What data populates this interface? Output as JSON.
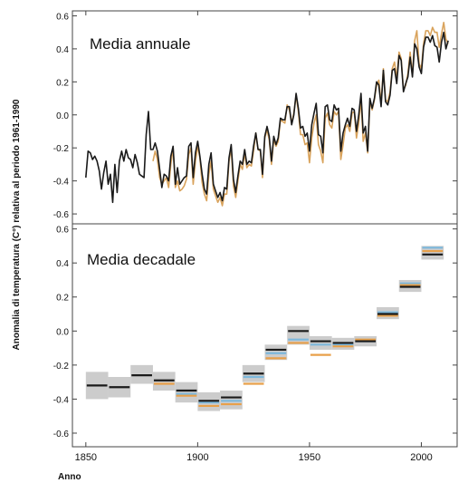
{
  "chart_data": [
    {
      "type": "line",
      "title": "Media annuale",
      "ylabel": "Anomalia di temperatura (C°) relativa al periodo 1961-1990",
      "xlim": [
        1844,
        2016
      ],
      "ylim": [
        -0.66,
        0.63
      ],
      "yticks": [
        -0.6,
        -0.4,
        -0.2,
        0.0,
        0.2,
        0.4,
        0.6
      ],
      "ytick_labels": [
        "-0.6",
        "-0.4",
        "-0.2",
        "0.0",
        "0.2",
        "0.4",
        "0.6"
      ],
      "grid": false,
      "series": [
        {
          "color": "#1a1a1a",
          "x": [
            1850,
            1851,
            1852,
            1853,
            1854,
            1855,
            1856,
            1857,
            1858,
            1859,
            1860,
            1861,
            1862,
            1863,
            1864,
            1865,
            1866,
            1867,
            1868,
            1869,
            1870,
            1871,
            1872,
            1873,
            1874,
            1875,
            1876,
            1877,
            1878,
            1879,
            1880,
            1881,
            1882,
            1883,
            1884,
            1885,
            1886,
            1887,
            1888,
            1889,
            1890,
            1891,
            1892,
            1893,
            1894,
            1895,
            1896,
            1897,
            1898,
            1899,
            1900,
            1901,
            1902,
            1903,
            1904,
            1905,
            1906,
            1907,
            1908,
            1909,
            1910,
            1911,
            1912,
            1913,
            1914,
            1915,
            1916,
            1917,
            1918,
            1919,
            1920,
            1921,
            1922,
            1923,
            1924,
            1925,
            1926,
            1927,
            1928,
            1929,
            1930,
            1931,
            1932,
            1933,
            1934,
            1935,
            1936,
            1937,
            1938,
            1939,
            1940,
            1941,
            1942,
            1943,
            1944,
            1945,
            1946,
            1947,
            1948,
            1949,
            1950,
            1951,
            1952,
            1953,
            1954,
            1955,
            1956,
            1957,
            1958,
            1959,
            1960,
            1961,
            1962,
            1963,
            1964,
            1965,
            1966,
            1967,
            1968,
            1969,
            1970,
            1971,
            1972,
            1973,
            1974,
            1975,
            1976,
            1977,
            1978,
            1979,
            1980,
            1981,
            1982,
            1983,
            1984,
            1985,
            1986,
            1987,
            1988,
            1989,
            1990,
            1991,
            1992,
            1993,
            1994,
            1995,
            1996,
            1997,
            1998,
            1999,
            2000,
            2001,
            2002,
            2003,
            2004,
            2005,
            2006,
            2007,
            2008,
            2009,
            2010,
            2011,
            2012
          ],
          "y": [
            -0.38,
            -0.22,
            -0.23,
            -0.27,
            -0.25,
            -0.28,
            -0.34,
            -0.45,
            -0.35,
            -0.28,
            -0.42,
            -0.36,
            -0.53,
            -0.3,
            -0.47,
            -0.28,
            -0.22,
            -0.28,
            -0.21,
            -0.26,
            -0.27,
            -0.32,
            -0.24,
            -0.29,
            -0.36,
            -0.37,
            -0.38,
            -0.12,
            0.02,
            -0.21,
            -0.21,
            -0.17,
            -0.22,
            -0.33,
            -0.44,
            -0.36,
            -0.37,
            -0.4,
            -0.25,
            -0.19,
            -0.42,
            -0.32,
            -0.42,
            -0.4,
            -0.38,
            -0.37,
            -0.19,
            -0.17,
            -0.38,
            -0.23,
            -0.16,
            -0.25,
            -0.36,
            -0.45,
            -0.48,
            -0.3,
            -0.23,
            -0.42,
            -0.46,
            -0.5,
            -0.47,
            -0.52,
            -0.44,
            -0.45,
            -0.26,
            -0.18,
            -0.39,
            -0.47,
            -0.37,
            -0.28,
            -0.3,
            -0.21,
            -0.3,
            -0.28,
            -0.29,
            -0.19,
            -0.11,
            -0.21,
            -0.21,
            -0.36,
            -0.13,
            -0.07,
            -0.13,
            -0.28,
            -0.13,
            -0.18,
            -0.14,
            -0.02,
            -0.03,
            -0.03,
            0.05,
            0.05,
            -0.06,
            0.0,
            0.13,
            0.04,
            -0.08,
            -0.07,
            -0.13,
            -0.11,
            -0.22,
            -0.06,
            0.01,
            0.07,
            -0.12,
            -0.13,
            -0.23,
            0.05,
            0.06,
            -0.03,
            -0.04,
            0.06,
            0.03,
            0.04,
            -0.22,
            -0.11,
            -0.06,
            -0.02,
            -0.07,
            0.04,
            0.03,
            -0.1,
            0.0,
            0.13,
            -0.11,
            -0.07,
            -0.22,
            0.1,
            0.04,
            0.1,
            0.2,
            0.18,
            0.05,
            0.27,
            0.08,
            0.06,
            0.12,
            0.27,
            0.28,
            0.19,
            0.36,
            0.33,
            0.14,
            0.19,
            0.23,
            0.35,
            0.23,
            0.43,
            0.4,
            0.29,
            0.25,
            0.41,
            0.47,
            0.47,
            0.44,
            0.48,
            0.42,
            0.41,
            0.32,
            0.44,
            0.5,
            0.4,
            0.45
          ]
        },
        {
          "color": "#d9a35c",
          "x": [
            1880,
            1881,
            1882,
            1883,
            1884,
            1885,
            1886,
            1887,
            1888,
            1889,
            1890,
            1891,
            1892,
            1893,
            1894,
            1895,
            1896,
            1897,
            1898,
            1899,
            1900,
            1901,
            1902,
            1903,
            1904,
            1905,
            1906,
            1907,
            1908,
            1909,
            1910,
            1911,
            1912,
            1913,
            1914,
            1915,
            1916,
            1917,
            1918,
            1919,
            1920,
            1921,
            1922,
            1923,
            1924,
            1925,
            1926,
            1927,
            1928,
            1929,
            1930,
            1931,
            1932,
            1933,
            1934,
            1935,
            1936,
            1937,
            1938,
            1939,
            1940,
            1941,
            1942,
            1943,
            1944,
            1945,
            1946,
            1947,
            1948,
            1949,
            1950,
            1951,
            1952,
            1953,
            1954,
            1955,
            1956,
            1957,
            1958,
            1959,
            1960,
            1961,
            1962,
            1963,
            1964,
            1965,
            1966,
            1967,
            1968,
            1969,
            1970,
            1971,
            1972,
            1973,
            1974,
            1975,
            1976,
            1977,
            1978,
            1979,
            1980,
            1981,
            1982,
            1983,
            1984,
            1985,
            1986,
            1987,
            1988,
            1989,
            1990,
            1991,
            1992,
            1993,
            1994,
            1995,
            1996,
            1997,
            1998,
            1999,
            2000,
            2001,
            2002,
            2003,
            2004,
            2005,
            2006,
            2007,
            2008,
            2009,
            2010,
            2011,
            2012
          ],
          "y": [
            -0.28,
            -0.22,
            -0.27,
            -0.38,
            -0.42,
            -0.4,
            -0.38,
            -0.44,
            -0.3,
            -0.2,
            -0.44,
            -0.4,
            -0.46,
            -0.45,
            -0.43,
            -0.39,
            -0.24,
            -0.2,
            -0.42,
            -0.28,
            -0.19,
            -0.26,
            -0.41,
            -0.48,
            -0.52,
            -0.36,
            -0.28,
            -0.45,
            -0.49,
            -0.53,
            -0.5,
            -0.55,
            -0.48,
            -0.48,
            -0.28,
            -0.2,
            -0.43,
            -0.5,
            -0.4,
            -0.3,
            -0.33,
            -0.23,
            -0.32,
            -0.3,
            -0.31,
            -0.22,
            -0.11,
            -0.21,
            -0.22,
            -0.38,
            -0.14,
            -0.09,
            -0.15,
            -0.3,
            -0.15,
            -0.19,
            -0.16,
            -0.03,
            -0.04,
            -0.05,
            0.06,
            0.03,
            -0.05,
            0.01,
            0.12,
            0.02,
            -0.12,
            -0.12,
            -0.18,
            -0.17,
            -0.29,
            -0.14,
            -0.05,
            0.0,
            -0.18,
            -0.22,
            -0.29,
            -0.02,
            0.01,
            -0.06,
            -0.08,
            0.02,
            0.0,
            0.02,
            -0.27,
            -0.18,
            -0.08,
            -0.06,
            -0.1,
            0.01,
            0.02,
            -0.14,
            -0.05,
            0.1,
            -0.16,
            -0.11,
            -0.23,
            0.08,
            0.03,
            0.09,
            0.18,
            0.21,
            0.07,
            0.28,
            0.09,
            0.08,
            0.14,
            0.28,
            0.32,
            0.22,
            0.38,
            0.34,
            0.15,
            0.18,
            0.25,
            0.38,
            0.24,
            0.45,
            0.51,
            0.31,
            0.28,
            0.43,
            0.51,
            0.51,
            0.48,
            0.53,
            0.5,
            0.5,
            0.41,
            0.49,
            0.56,
            0.46,
            0.43
          ]
        }
      ]
    },
    {
      "type": "bar",
      "title": "Media decadale",
      "xlabel": "Anno",
      "ylabel": "Anomalia di temperatura (C°) relativa al periodo 1961-1990",
      "xlim": [
        1844,
        2016
      ],
      "ylim": [
        -0.68,
        0.63
      ],
      "yticks": [
        -0.6,
        -0.4,
        -0.2,
        0.0,
        0.2,
        0.4,
        0.6
      ],
      "ytick_labels": [
        "-0.6",
        "-0.4",
        "-0.2",
        "0.0",
        "0.2",
        "0.4",
        "0.6"
      ],
      "xticks": [
        1850,
        1900,
        1950,
        2000
      ],
      "xtick_labels": [
        "1850",
        "1900",
        "1950",
        "2000"
      ],
      "grid": false,
      "colors": {
        "uncertainty": "#cccccc",
        "series1": "#1a1a1a",
        "series2": "#e8a04a",
        "series3": "#7db8dc"
      },
      "decades": [
        {
          "start": 1850,
          "end": 1860,
          "low": -0.4,
          "high": -0.24,
          "v1": -0.32
        },
        {
          "start": 1860,
          "end": 1870,
          "low": -0.39,
          "high": -0.27,
          "v1": -0.33
        },
        {
          "start": 1870,
          "end": 1880,
          "low": -0.31,
          "high": -0.2,
          "v1": -0.26
        },
        {
          "start": 1880,
          "end": 1890,
          "low": -0.35,
          "high": -0.24,
          "v1": -0.29,
          "v2": -0.31
        },
        {
          "start": 1890,
          "end": 1900,
          "low": -0.42,
          "high": -0.3,
          "v1": -0.35,
          "v2": -0.38,
          "v3": -0.37
        },
        {
          "start": 1900,
          "end": 1910,
          "low": -0.47,
          "high": -0.36,
          "v1": -0.41,
          "v2": -0.44,
          "v3": -0.42
        },
        {
          "start": 1910,
          "end": 1920,
          "low": -0.46,
          "high": -0.35,
          "v1": -0.39,
          "v2": -0.43,
          "v3": -0.41
        },
        {
          "start": 1920,
          "end": 1930,
          "low": -0.3,
          "high": -0.2,
          "v1": -0.25,
          "v2": -0.31,
          "v3": -0.27
        },
        {
          "start": 1930,
          "end": 1940,
          "low": -0.17,
          "high": -0.08,
          "v1": -0.11,
          "v2": -0.16,
          "v3": -0.13
        },
        {
          "start": 1940,
          "end": 1950,
          "low": -0.08,
          "high": 0.03,
          "v1": 0.0,
          "v2": -0.07,
          "v3": -0.05
        },
        {
          "start": 1950,
          "end": 1960,
          "low": -0.11,
          "high": -0.03,
          "v1": -0.06,
          "v2": -0.14,
          "v3": -0.08
        },
        {
          "start": 1960,
          "end": 1970,
          "low": -0.11,
          "high": -0.04,
          "v1": -0.07,
          "v2": -0.09,
          "v3": -0.08
        },
        {
          "start": 1970,
          "end": 1980,
          "low": -0.09,
          "high": -0.03,
          "v1": -0.06,
          "v2": -0.05,
          "v3": -0.06
        },
        {
          "start": 1980,
          "end": 1990,
          "low": 0.07,
          "high": 0.14,
          "v1": 0.1,
          "v2": 0.09,
          "v3": 0.11
        },
        {
          "start": 1990,
          "end": 2000,
          "low": 0.23,
          "high": 0.3,
          "v1": 0.26,
          "v2": 0.27,
          "v3": 0.28
        },
        {
          "start": 2000,
          "end": 2010,
          "low": 0.42,
          "high": 0.5,
          "v1": 0.45,
          "v2": 0.47,
          "v3": 0.49
        }
      ]
    }
  ]
}
